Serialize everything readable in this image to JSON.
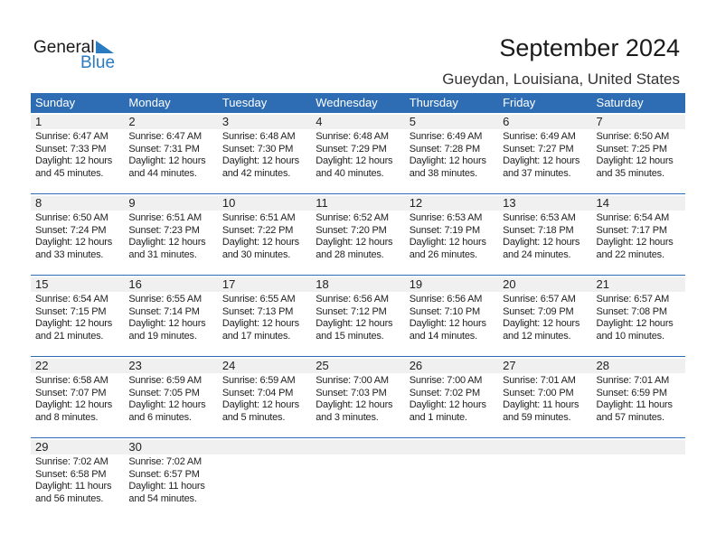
{
  "logo": {
    "text1": "General",
    "text2": "Blue"
  },
  "title": "September 2024",
  "location": "Gueydan, Louisiana, United States",
  "colors": {
    "header": "#2e6db3",
    "date_bar": "#f0f0f0",
    "logo_blue": "#2a7bc0"
  },
  "weekdays": [
    "Sunday",
    "Monday",
    "Tuesday",
    "Wednesday",
    "Thursday",
    "Friday",
    "Saturday"
  ],
  "weeks": [
    [
      {
        "day": "1",
        "sunrise": "Sunrise: 6:47 AM",
        "sunset": "Sunset: 7:33 PM",
        "daylight": "Daylight: 12 hours",
        "daylight2": "and 45 minutes."
      },
      {
        "day": "2",
        "sunrise": "Sunrise: 6:47 AM",
        "sunset": "Sunset: 7:31 PM",
        "daylight": "Daylight: 12 hours",
        "daylight2": "and 44 minutes."
      },
      {
        "day": "3",
        "sunrise": "Sunrise: 6:48 AM",
        "sunset": "Sunset: 7:30 PM",
        "daylight": "Daylight: 12 hours",
        "daylight2": "and 42 minutes."
      },
      {
        "day": "4",
        "sunrise": "Sunrise: 6:48 AM",
        "sunset": "Sunset: 7:29 PM",
        "daylight": "Daylight: 12 hours",
        "daylight2": "and 40 minutes."
      },
      {
        "day": "5",
        "sunrise": "Sunrise: 6:49 AM",
        "sunset": "Sunset: 7:28 PM",
        "daylight": "Daylight: 12 hours",
        "daylight2": "and 38 minutes."
      },
      {
        "day": "6",
        "sunrise": "Sunrise: 6:49 AM",
        "sunset": "Sunset: 7:27 PM",
        "daylight": "Daylight: 12 hours",
        "daylight2": "and 37 minutes."
      },
      {
        "day": "7",
        "sunrise": "Sunrise: 6:50 AM",
        "sunset": "Sunset: 7:25 PM",
        "daylight": "Daylight: 12 hours",
        "daylight2": "and 35 minutes."
      }
    ],
    [
      {
        "day": "8",
        "sunrise": "Sunrise: 6:50 AM",
        "sunset": "Sunset: 7:24 PM",
        "daylight": "Daylight: 12 hours",
        "daylight2": "and 33 minutes."
      },
      {
        "day": "9",
        "sunrise": "Sunrise: 6:51 AM",
        "sunset": "Sunset: 7:23 PM",
        "daylight": "Daylight: 12 hours",
        "daylight2": "and 31 minutes."
      },
      {
        "day": "10",
        "sunrise": "Sunrise: 6:51 AM",
        "sunset": "Sunset: 7:22 PM",
        "daylight": "Daylight: 12 hours",
        "daylight2": "and 30 minutes."
      },
      {
        "day": "11",
        "sunrise": "Sunrise: 6:52 AM",
        "sunset": "Sunset: 7:20 PM",
        "daylight": "Daylight: 12 hours",
        "daylight2": "and 28 minutes."
      },
      {
        "day": "12",
        "sunrise": "Sunrise: 6:53 AM",
        "sunset": "Sunset: 7:19 PM",
        "daylight": "Daylight: 12 hours",
        "daylight2": "and 26 minutes."
      },
      {
        "day": "13",
        "sunrise": "Sunrise: 6:53 AM",
        "sunset": "Sunset: 7:18 PM",
        "daylight": "Daylight: 12 hours",
        "daylight2": "and 24 minutes."
      },
      {
        "day": "14",
        "sunrise": "Sunrise: 6:54 AM",
        "sunset": "Sunset: 7:17 PM",
        "daylight": "Daylight: 12 hours",
        "daylight2": "and 22 minutes."
      }
    ],
    [
      {
        "day": "15",
        "sunrise": "Sunrise: 6:54 AM",
        "sunset": "Sunset: 7:15 PM",
        "daylight": "Daylight: 12 hours",
        "daylight2": "and 21 minutes."
      },
      {
        "day": "16",
        "sunrise": "Sunrise: 6:55 AM",
        "sunset": "Sunset: 7:14 PM",
        "daylight": "Daylight: 12 hours",
        "daylight2": "and 19 minutes."
      },
      {
        "day": "17",
        "sunrise": "Sunrise: 6:55 AM",
        "sunset": "Sunset: 7:13 PM",
        "daylight": "Daylight: 12 hours",
        "daylight2": "and 17 minutes."
      },
      {
        "day": "18",
        "sunrise": "Sunrise: 6:56 AM",
        "sunset": "Sunset: 7:12 PM",
        "daylight": "Daylight: 12 hours",
        "daylight2": "and 15 minutes."
      },
      {
        "day": "19",
        "sunrise": "Sunrise: 6:56 AM",
        "sunset": "Sunset: 7:10 PM",
        "daylight": "Daylight: 12 hours",
        "daylight2": "and 14 minutes."
      },
      {
        "day": "20",
        "sunrise": "Sunrise: 6:57 AM",
        "sunset": "Sunset: 7:09 PM",
        "daylight": "Daylight: 12 hours",
        "daylight2": "and 12 minutes."
      },
      {
        "day": "21",
        "sunrise": "Sunrise: 6:57 AM",
        "sunset": "Sunset: 7:08 PM",
        "daylight": "Daylight: 12 hours",
        "daylight2": "and 10 minutes."
      }
    ],
    [
      {
        "day": "22",
        "sunrise": "Sunrise: 6:58 AM",
        "sunset": "Sunset: 7:07 PM",
        "daylight": "Daylight: 12 hours",
        "daylight2": "and 8 minutes."
      },
      {
        "day": "23",
        "sunrise": "Sunrise: 6:59 AM",
        "sunset": "Sunset: 7:05 PM",
        "daylight": "Daylight: 12 hours",
        "daylight2": "and 6 minutes."
      },
      {
        "day": "24",
        "sunrise": "Sunrise: 6:59 AM",
        "sunset": "Sunset: 7:04 PM",
        "daylight": "Daylight: 12 hours",
        "daylight2": "and 5 minutes."
      },
      {
        "day": "25",
        "sunrise": "Sunrise: 7:00 AM",
        "sunset": "Sunset: 7:03 PM",
        "daylight": "Daylight: 12 hours",
        "daylight2": "and 3 minutes."
      },
      {
        "day": "26",
        "sunrise": "Sunrise: 7:00 AM",
        "sunset": "Sunset: 7:02 PM",
        "daylight": "Daylight: 12 hours",
        "daylight2": "and 1 minute."
      },
      {
        "day": "27",
        "sunrise": "Sunrise: 7:01 AM",
        "sunset": "Sunset: 7:00 PM",
        "daylight": "Daylight: 11 hours",
        "daylight2": "and 59 minutes."
      },
      {
        "day": "28",
        "sunrise": "Sunrise: 7:01 AM",
        "sunset": "Sunset: 6:59 PM",
        "daylight": "Daylight: 11 hours",
        "daylight2": "and 57 minutes."
      }
    ],
    [
      {
        "day": "29",
        "sunrise": "Sunrise: 7:02 AM",
        "sunset": "Sunset: 6:58 PM",
        "daylight": "Daylight: 11 hours",
        "daylight2": "and 56 minutes."
      },
      {
        "day": "30",
        "sunrise": "Sunrise: 7:02 AM",
        "sunset": "Sunset: 6:57 PM",
        "daylight": "Daylight: 11 hours",
        "daylight2": "and 54 minutes."
      }
    ]
  ]
}
